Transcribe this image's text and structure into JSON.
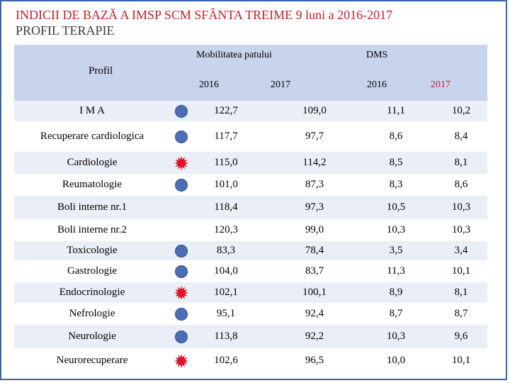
{
  "title": {
    "line1": "INDICII DE BAZĂ A IMSP SCM SFÂNTA TREIME 9 luni a 2016-2017",
    "line2": "PROFIL TERAPIE"
  },
  "header": {
    "profil": "Profil",
    "mobilitatea": "Mobilitatea patului",
    "dms": "DMS",
    "years": [
      "2016",
      "2017",
      "2016",
      "2017"
    ]
  },
  "colors": {
    "blue_marker": "#4a6fb5",
    "red_marker": "#e0102a",
    "header_band": "#c8d4ec",
    "row_shade": "#eaeef6",
    "title": "#c0202e"
  },
  "rows": [
    {
      "profil": "I M A",
      "marker": "blue-circle",
      "mob_2016": "122,7",
      "mob_2017": "109,0",
      "dms_2016": "11,1",
      "dms_2017": "10,2"
    },
    {
      "profil": "Recuperare cardiologica",
      "marker": "blue-circle",
      "mob_2016": "117,7",
      "mob_2017": "97,7",
      "dms_2016": "8,6",
      "dms_2017": "8,4"
    },
    {
      "profil": "Cardiologie",
      "marker": "red-star",
      "mob_2016": "115,0",
      "mob_2017": "114,2",
      "dms_2016": "8,5",
      "dms_2017": "8,1"
    },
    {
      "profil": "Reumatologie",
      "marker": "blue-circle",
      "mob_2016": "101,0",
      "mob_2017": "87,3",
      "dms_2016": "8,3",
      "dms_2017": "8,6"
    },
    {
      "profil": "Boli interne nr.1",
      "marker": "none",
      "mob_2016": "118,4",
      "mob_2017": "97,3",
      "dms_2016": "10,5",
      "dms_2017": "10,3"
    },
    {
      "profil": "Boli interne nr.2",
      "marker": "none",
      "mob_2016": "120,3",
      "mob_2017": "99,0",
      "dms_2016": "10,3",
      "dms_2017": "10,3"
    },
    {
      "profil": "Toxicologie",
      "marker": "blue-circle",
      "mob_2016": "83,3",
      "mob_2017": "78,4",
      "dms_2016": "3,5",
      "dms_2017": "3,4"
    },
    {
      "profil": "Gastrologie",
      "marker": "blue-circle",
      "mob_2016": "104,0",
      "mob_2017": "83,7",
      "dms_2016": "11,3",
      "dms_2017": "10,1"
    },
    {
      "profil": "Endocrinologie",
      "marker": "red-star",
      "mob_2016": "102,1",
      "mob_2017": "100,1",
      "dms_2016": "8,9",
      "dms_2017": "8,1"
    },
    {
      "profil": "Nefrologie",
      "marker": "blue-circle",
      "mob_2016": "95,1",
      "mob_2017": "92,4",
      "dms_2016": "8,7",
      "dms_2017": "8,7"
    },
    {
      "profil": "Neurologie",
      "marker": "blue-circle",
      "mob_2016": "113,8",
      "mob_2017": "92,2",
      "dms_2016": "10,3",
      "dms_2017": "9,6"
    },
    {
      "profil": "Neurorecuperare",
      "marker": "red-star",
      "mob_2016": "102,6",
      "mob_2017": "96,5",
      "dms_2016": "10,0",
      "dms_2017": "10,1"
    }
  ]
}
